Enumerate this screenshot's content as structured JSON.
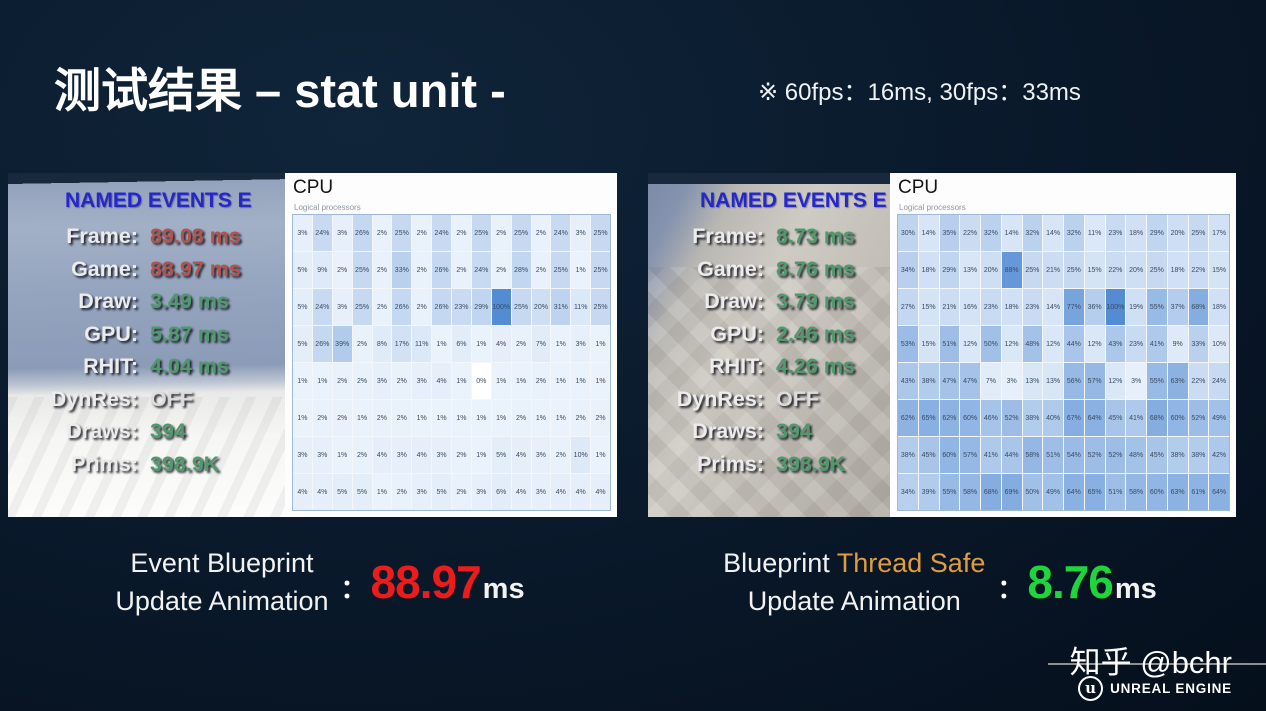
{
  "header": {
    "title": "测试结果 – stat unit -",
    "fps_note": "※ 60fps：16ms, 30fps：33ms"
  },
  "left_panel": {
    "stats_title": "NAMED EVENTS E",
    "stats": [
      {
        "label": "Frame:",
        "value": "89.08 ms",
        "tone": "red"
      },
      {
        "label": "Game:",
        "value": "88.97 ms",
        "tone": "red"
      },
      {
        "label": "Draw:",
        "value": "3.49 ms",
        "tone": "green"
      },
      {
        "label": "GPU:",
        "value": "5.87 ms",
        "tone": "green"
      },
      {
        "label": "RHIT:",
        "value": "4.04 ms",
        "tone": "green"
      },
      {
        "label": "DynRes:",
        "value": "OFF",
        "tone": "white"
      },
      {
        "label": "Draws:",
        "value": "394",
        "tone": "green"
      },
      {
        "label": "Prims:",
        "value": "398.9K",
        "tone": "green"
      }
    ],
    "cpu": {
      "title": "CPU",
      "subtitle": "Logical processors",
      "rows": [
        [
          3,
          24,
          3,
          26,
          2,
          25,
          2,
          24,
          2,
          25,
          2,
          25,
          2,
          24,
          3,
          25
        ],
        [
          5,
          9,
          2,
          25,
          2,
          33,
          2,
          26,
          2,
          24,
          2,
          28,
          2,
          25,
          1,
          25
        ],
        [
          5,
          24,
          3,
          25,
          2,
          26,
          2,
          26,
          23,
          29,
          100,
          25,
          20,
          31,
          11,
          25
        ],
        [
          5,
          26,
          39,
          2,
          8,
          17,
          11,
          1,
          6,
          1,
          4,
          2,
          7,
          1,
          3,
          1
        ],
        [
          1,
          1,
          2,
          2,
          3,
          2,
          3,
          4,
          1,
          0,
          1,
          1,
          2,
          1,
          1,
          1
        ],
        [
          1,
          2,
          2,
          1,
          2,
          2,
          1,
          1,
          1,
          1,
          1,
          2,
          1,
          1,
          2,
          2
        ],
        [
          3,
          3,
          1,
          2,
          4,
          3,
          4,
          3,
          2,
          1,
          5,
          4,
          3,
          2,
          10,
          1
        ],
        [
          4,
          4,
          5,
          5,
          1,
          2,
          3,
          5,
          2,
          3,
          6,
          4,
          3,
          4,
          4,
          4
        ]
      ]
    }
  },
  "right_panel": {
    "stats_title": "NAMED EVENTS E",
    "stats": [
      {
        "label": "Frame:",
        "value": "8.73 ms",
        "tone": "green"
      },
      {
        "label": "Game:",
        "value": "8.76 ms",
        "tone": "green"
      },
      {
        "label": "Draw:",
        "value": "3.79 ms",
        "tone": "green"
      },
      {
        "label": "GPU:",
        "value": "2.46 ms",
        "tone": "green"
      },
      {
        "label": "RHIT:",
        "value": "4.26 ms",
        "tone": "green"
      },
      {
        "label": "DynRes:",
        "value": "OFF",
        "tone": "white"
      },
      {
        "label": "Draws:",
        "value": "394",
        "tone": "green"
      },
      {
        "label": "Prims:",
        "value": "398.9K",
        "tone": "green"
      }
    ],
    "cpu": {
      "title": "CPU",
      "subtitle": "Logical processors",
      "rows": [
        [
          30,
          14,
          35,
          22,
          32,
          14,
          32,
          14,
          32,
          11,
          23,
          18,
          29,
          20,
          25,
          17
        ],
        [
          34,
          18,
          29,
          13,
          20,
          88,
          25,
          21,
          25,
          15,
          22,
          20,
          25,
          18,
          22,
          15
        ],
        [
          27,
          15,
          21,
          16,
          23,
          18,
          23,
          14,
          77,
          36,
          100,
          19,
          55,
          37,
          68,
          18
        ],
        [
          53,
          15,
          51,
          12,
          50,
          12,
          48,
          12,
          44,
          12,
          43,
          23,
          41,
          9,
          33,
          10
        ],
        [
          43,
          38,
          47,
          47,
          7,
          3,
          13,
          13,
          56,
          57,
          12,
          3,
          55,
          63,
          22,
          24
        ],
        [
          62,
          65,
          62,
          60,
          46,
          52,
          38,
          40,
          67,
          64,
          45,
          41,
          68,
          60,
          52,
          49
        ],
        [
          38,
          45,
          60,
          57,
          41,
          44,
          58,
          51,
          54,
          52,
          52,
          48,
          45,
          38,
          38,
          42
        ],
        [
          34,
          39,
          55,
          58,
          68,
          69,
          50,
          49,
          64,
          65,
          51,
          58,
          60,
          63,
          61,
          64
        ]
      ]
    }
  },
  "captions": {
    "left": {
      "line1": [
        {
          "text": "Event Blueprint",
          "color": "#f2f2f2"
        }
      ],
      "line2": "Update Animation",
      "colon": "：",
      "value": "88.97",
      "unit": "ms",
      "value_color": "#ea1c1c"
    },
    "right": {
      "line1": [
        {
          "text": "Blueprint ",
          "color": "#f2f2f2"
        },
        {
          "text": "Thread Safe",
          "color": "#e09c3e"
        }
      ],
      "line2": "Update Animation",
      "colon": "：",
      "value": "8.76",
      "unit": "ms",
      "value_color": "#1fd53c"
    }
  },
  "footer": {
    "watermark": "知乎 @bchr",
    "logo_letter": "u",
    "logo_text": "UNREAL ENGINE"
  },
  "colors": {
    "stat_red": "#b2544c",
    "stat_green": "#4f9a6a",
    "heading_blue": "#2626cd",
    "cpu_cell_max": "#548cd4"
  }
}
